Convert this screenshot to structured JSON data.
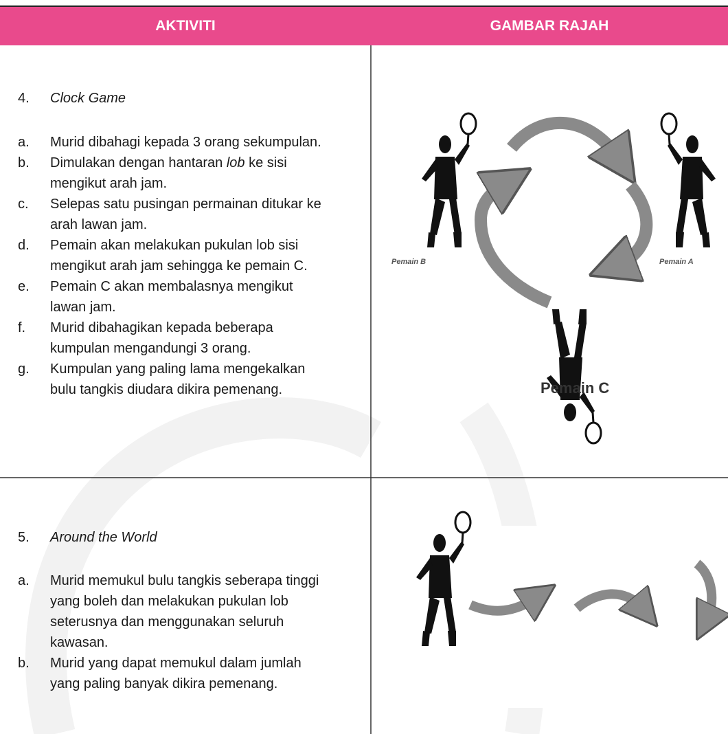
{
  "header": {
    "col1": "AKTIVITI",
    "col2": "GAMBAR RAJAH"
  },
  "rows": [
    {
      "number": "4.",
      "title": "Clock Game",
      "items": [
        {
          "label": "a.",
          "parts": [
            {
              "text": "Murid dibahagi kepada 3 orang sekumpulan."
            }
          ]
        },
        {
          "label": "b.",
          "parts": [
            {
              "text": "Dimulakan dengan hantaran "
            },
            {
              "text": "lob",
              "italic": true
            },
            {
              "text": " ke sisi mengikut arah jam."
            }
          ]
        },
        {
          "label": "c.",
          "parts": [
            {
              "text": "Selepas satu pusingan permainan ditukar ke arah lawan jam."
            }
          ]
        },
        {
          "label": "d.",
          "parts": [
            {
              "text": "Pemain akan melakukan pukulan lob sisi mengikut arah jam sehingga ke pemain C."
            }
          ]
        },
        {
          "label": "e.",
          "parts": [
            {
              "text": "Pemain C akan membalasnya mengikut lawan jam."
            }
          ]
        },
        {
          "label": "f.",
          "parts": [
            {
              "text": "Murid dibahagikan kepada beberapa kumpulan mengandungi 3 orang."
            }
          ]
        },
        {
          "label": "g.",
          "parts": [
            {
              "text": "Kumpulan yang paling lama mengekalkan bulu tangkis diudara dikira pemenang."
            }
          ]
        }
      ],
      "diagram_labels": [
        "Pemain B",
        "Pemain A",
        "Pemain C"
      ]
    },
    {
      "number": "5.",
      "title": "Around the World",
      "items": [
        {
          "label": "a.",
          "parts": [
            {
              "text": "Murid memukul bulu tangkis seberapa tinggi yang boleh dan melakukan pukulan lob seterusnya dan menggunakan seluruh kawasan."
            }
          ]
        },
        {
          "label": "b.",
          "parts": [
            {
              "text": "Murid yang dapat memukul dalam jumlah yang paling banyak dikira pemenang."
            }
          ]
        }
      ]
    }
  ]
}
